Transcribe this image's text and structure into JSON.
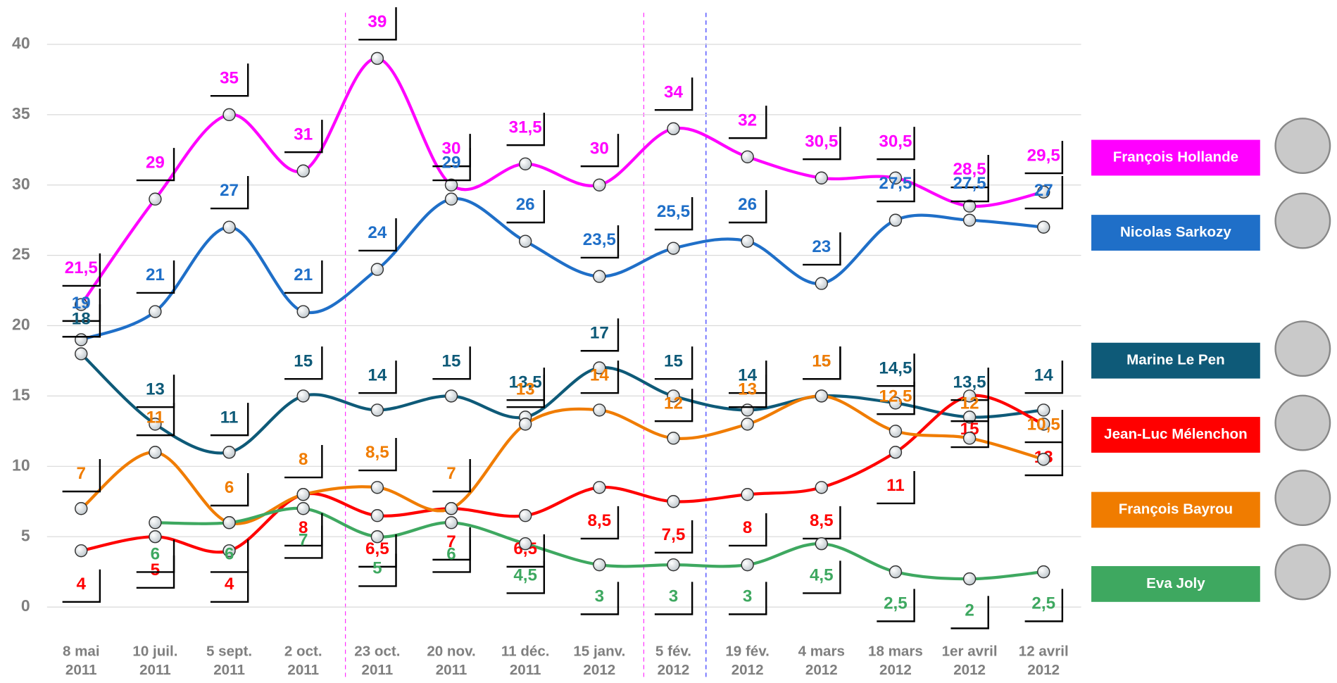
{
  "chart_data": {
    "type": "line",
    "categories": [
      "8 mai 2011",
      "10 juil. 2011",
      "5 sept. 2011",
      "2 oct. 2011",
      "23 oct. 2011",
      "20 nov. 2011",
      "11 déc. 2011",
      "15 janv. 2012",
      "5 fév. 2012",
      "19 fév. 2012",
      "4 mars 2012",
      "18 mars 2012",
      "1er avril 2012",
      "12 avril 2012"
    ],
    "ylim": [
      0,
      40
    ],
    "yticks": [
      0,
      5,
      10,
      15,
      20,
      25,
      30,
      35,
      40
    ],
    "grid": true,
    "series": [
      {
        "name": "François Hollande",
        "color": "#ff00ff",
        "values": [
          21.5,
          29,
          35,
          31,
          39,
          30,
          31.5,
          30,
          34,
          32,
          30.5,
          30.5,
          28.5,
          29.5
        ],
        "value_labels": [
          "21,5",
          "29",
          "35",
          "31",
          "39",
          "30",
          "31,5",
          "30",
          "34",
          "32",
          "30,5",
          "30,5",
          "28,5",
          "29,5"
        ]
      },
      {
        "name": "Nicolas Sarkozy",
        "color": "#1f6fc8",
        "values": [
          19,
          21,
          27,
          21,
          24,
          29,
          26,
          23.5,
          25.5,
          26,
          23,
          27.5,
          27.5,
          27
        ],
        "value_labels": [
          "19",
          "21",
          "27",
          "21",
          "24",
          "29",
          "26",
          "23,5",
          "25,5",
          "26",
          "23",
          "27,5",
          "27,5",
          "27"
        ]
      },
      {
        "name": "Marine Le Pen",
        "color": "#0e5a78",
        "values": [
          18,
          13,
          11,
          15,
          14,
          15,
          13.5,
          17,
          15,
          14,
          15,
          14.5,
          13.5,
          14
        ],
        "value_labels": [
          "18",
          "13",
          "11",
          "15",
          "14",
          "15",
          "13,5",
          "17",
          "15",
          "14",
          "15",
          "14,5",
          "13,5",
          "14"
        ]
      },
      {
        "name": "Jean-Luc Mélenchon",
        "color": "#ff0000",
        "values": [
          4,
          5,
          4,
          8,
          6.5,
          7,
          6.5,
          8.5,
          7.5,
          8,
          8.5,
          11,
          15,
          13
        ],
        "value_labels": [
          "4",
          "5",
          "4",
          "8",
          "6,5",
          "7",
          "6,5",
          "8,5",
          "7,5",
          "8",
          "8,5",
          "11",
          "15",
          "13"
        ]
      },
      {
        "name": "François Bayrou",
        "color": "#f07c00",
        "values": [
          7,
          11,
          6,
          8,
          8.5,
          7,
          13,
          14,
          12,
          13,
          15,
          12.5,
          12,
          10.5
        ],
        "value_labels": [
          "7",
          "11",
          "6",
          "8",
          "8,5",
          "7",
          "13",
          "14",
          "12",
          "13",
          "15",
          "12,5",
          "12",
          "10,5"
        ]
      },
      {
        "name": "Eva Joly",
        "color": "#3ea860",
        "values": [
          null,
          6,
          6,
          7,
          5,
          6,
          4.5,
          3,
          3,
          3,
          4.5,
          2.5,
          2,
          2.5
        ],
        "value_labels": [
          null,
          "6",
          "6",
          "7",
          "5",
          "6",
          "4,5",
          "3",
          "3",
          "3",
          "4,5",
          "2,5",
          "2",
          "2,5"
        ]
      }
    ]
  }
}
